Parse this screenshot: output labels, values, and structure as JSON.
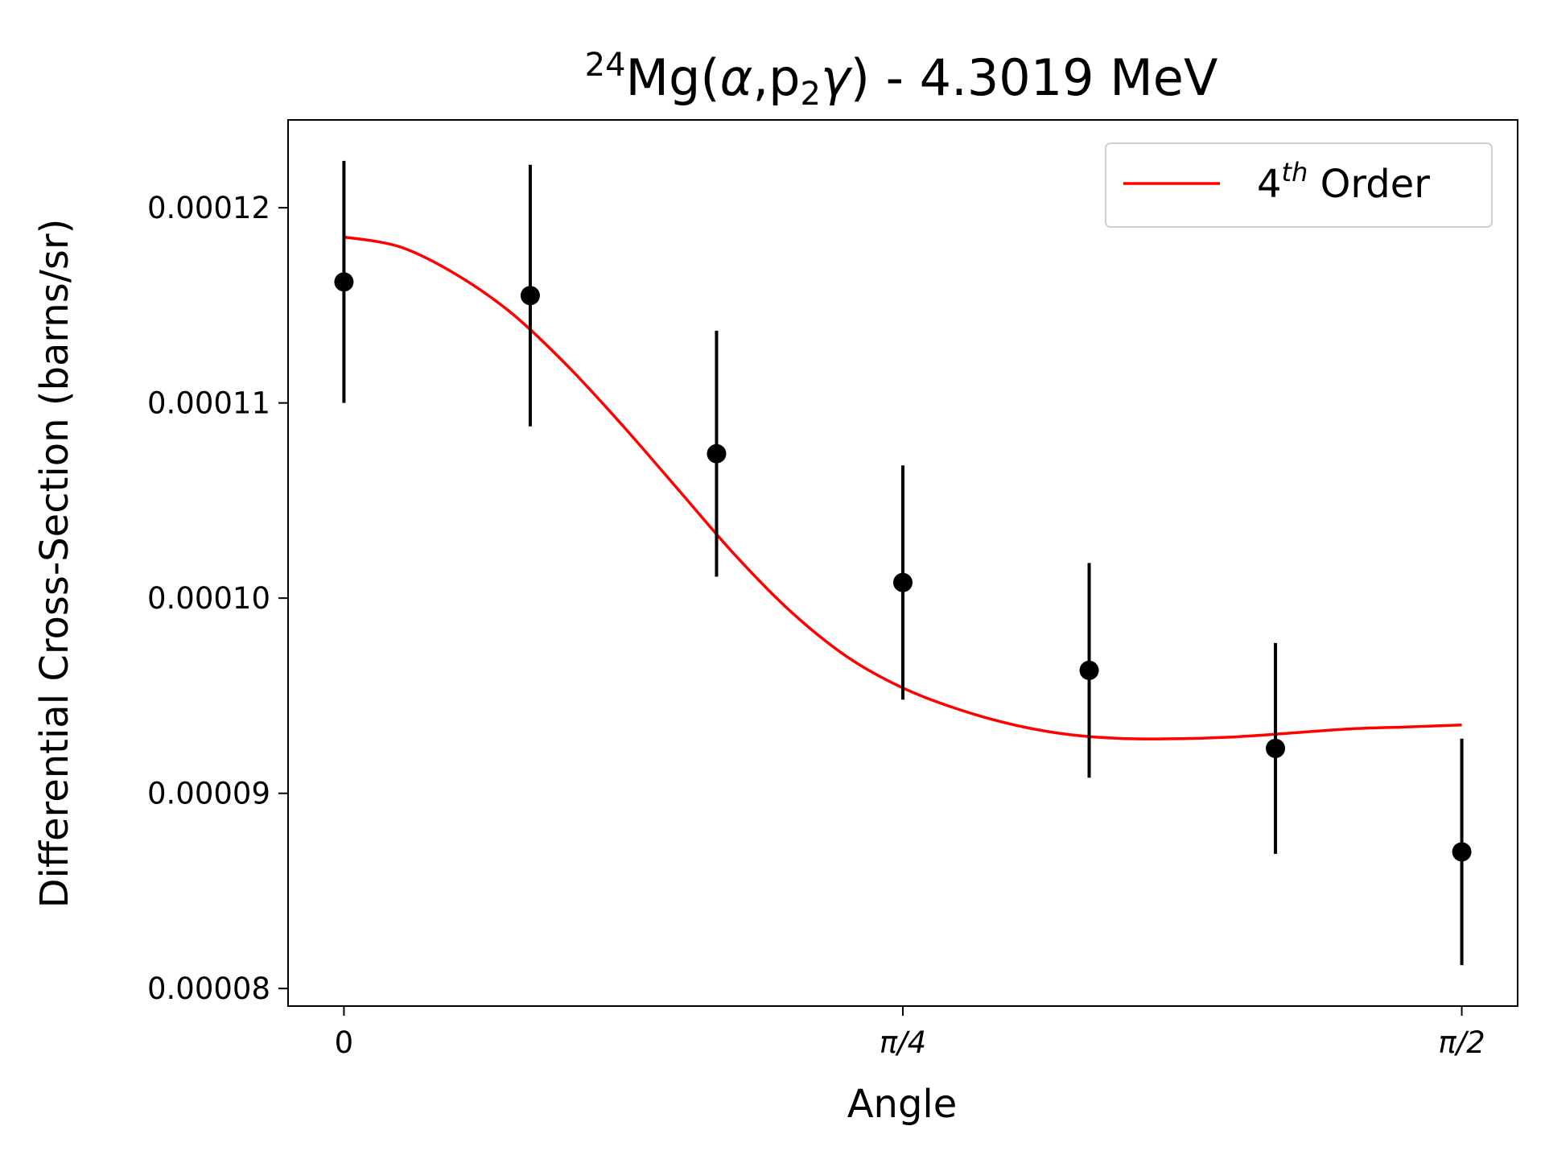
{
  "chart_data": {
    "type": "scatter",
    "title": {
      "pre_sup": "24",
      "element": "Mg(",
      "alpha": "α",
      "comma_p": ",p",
      "sub": "2",
      "gamma": "γ",
      "rest": ") - 4.3019 MeV"
    },
    "xlabel": "Angle",
    "ylabel": "Differential Cross-Section (barns/sr)",
    "xlim": [
      -0.0785,
      1.6493
    ],
    "ylim": [
      7.91e-05,
      0.0001245
    ],
    "x_ticks": [
      {
        "value": 0,
        "label": "0"
      },
      {
        "value": 0.7854,
        "label": "π/4"
      },
      {
        "value": 1.5708,
        "label": "π/2"
      }
    ],
    "y_ticks": [
      {
        "value": 8e-05,
        "label": "0.00008"
      },
      {
        "value": 9e-05,
        "label": "0.00009"
      },
      {
        "value": 0.0001,
        "label": "0.00010"
      },
      {
        "value": 0.00011,
        "label": "0.00011"
      },
      {
        "value": 0.00012,
        "label": "0.00012"
      }
    ],
    "points": {
      "x": [
        0,
        0.2618,
        0.5236,
        0.7854,
        1.0472,
        1.309,
        1.5708
      ],
      "y": [
        0.0001162,
        0.0001155,
        0.0001074,
        0.0001008,
        9.63e-05,
        9.23e-05,
        8.7e-05
      ],
      "err": [
        6.2e-06,
        6.7e-06,
        6.3e-06,
        6e-06,
        5.5e-06,
        5.4e-06,
        5.8e-06
      ],
      "color": "#000000"
    },
    "fit": {
      "name_base": "4",
      "name_sup": "th",
      "name_rest": " Order",
      "color": "#ff0000",
      "x": [
        0,
        0.0785,
        0.1571,
        0.2356,
        0.3142,
        0.3927,
        0.4712,
        0.5498,
        0.6283,
        0.7069,
        0.7854,
        0.8639,
        0.9425,
        1.021,
        1.0996,
        1.1781,
        1.2566,
        1.3352,
        1.4137,
        1.4923,
        1.5708
      ],
      "y": [
        0.0001185,
        0.000118,
        0.0001166,
        0.0001146,
        0.0001119,
        0.0001088,
        0.0001055,
        0.0001022,
        9.93e-05,
        9.7e-05,
        9.54e-05,
        9.43e-05,
        9.35e-05,
        9.3e-05,
        9.28e-05,
        9.28e-05,
        9.29e-05,
        9.31e-05,
        9.33e-05,
        9.34e-05,
        9.35e-05
      ]
    },
    "legend": "top-right",
    "grid": false
  }
}
